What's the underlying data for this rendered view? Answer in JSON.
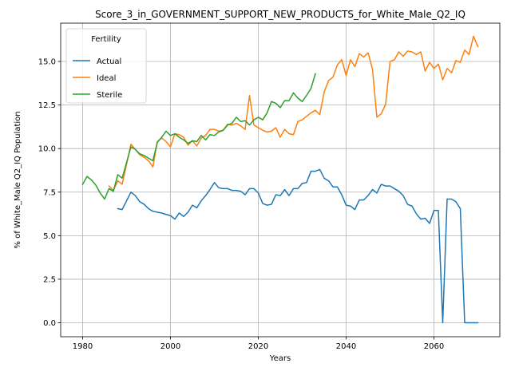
{
  "chart_data": {
    "type": "line",
    "title": "Score_3_in_GOVERNMENT_SUPPORT_NEW_PRODUCTS_for_White_Male_Q2_IQ",
    "xlabel": "Years",
    "ylabel": "% of White_Male Q2_IQ Population",
    "xlim": [
      1975,
      2075
    ],
    "ylim": [
      -0.8,
      17.2
    ],
    "xticks": [
      1980,
      2000,
      2020,
      2040,
      2060
    ],
    "xtick_labels": [
      "1980",
      "2000",
      "2020",
      "2040",
      "2060"
    ],
    "yticks": [
      0,
      2.5,
      5,
      7.5,
      10,
      12.5,
      15
    ],
    "ytick_labels": [
      "0.0",
      "2.5",
      "5.0",
      "7.5",
      "10.0",
      "12.5",
      "15.0"
    ],
    "grid": true,
    "legend": {
      "title": "Fertility",
      "placement": "upper-left"
    },
    "series": [
      {
        "name": "Actual",
        "color": "#1f77b4",
        "x": [
          1988,
          1989,
          1990,
          1991,
          1992,
          1993,
          1994,
          1995,
          1996,
          1997,
          1998,
          1999,
          2000,
          2001,
          2002,
          2003,
          2004,
          2005,
          2006,
          2007,
          2008,
          2009,
          2010,
          2011,
          2012,
          2013,
          2014,
          2015,
          2016,
          2017,
          2018,
          2019,
          2020,
          2021,
          2022,
          2023,
          2024,
          2025,
          2026,
          2027,
          2028,
          2029,
          2030,
          2031,
          2032,
          2033,
          2034,
          2035,
          2036,
          2037,
          2038,
          2039,
          2040,
          2041,
          2042,
          2043,
          2044,
          2045,
          2046,
          2047,
          2048,
          2049,
          2050,
          2051,
          2052,
          2053,
          2054,
          2055,
          2056,
          2057,
          2058,
          2059,
          2060,
          2061,
          2062,
          2063,
          2064,
          2065,
          2066,
          2067,
          2068,
          2069,
          2070
        ],
        "y": [
          6.55,
          6.5,
          7.0,
          7.5,
          7.3,
          6.95,
          6.8,
          6.55,
          6.4,
          6.35,
          6.3,
          6.22,
          6.15,
          5.95,
          6.3,
          6.1,
          6.35,
          6.75,
          6.6,
          7.0,
          7.3,
          7.65,
          8.05,
          7.75,
          7.7,
          7.7,
          7.6,
          7.6,
          7.55,
          7.35,
          7.7,
          7.7,
          7.45,
          6.85,
          6.75,
          6.8,
          7.35,
          7.3,
          7.65,
          7.3,
          7.7,
          7.7,
          8.0,
          8.05,
          8.7,
          8.7,
          8.8,
          8.3,
          8.15,
          7.8,
          7.8,
          7.35,
          6.75,
          6.7,
          6.5,
          7.05,
          7.05,
          7.3,
          7.65,
          7.45,
          7.95,
          7.85,
          7.85,
          7.7,
          7.55,
          7.3,
          6.8,
          6.7,
          6.25,
          5.95,
          6.0,
          5.7,
          6.45,
          6.45,
          0.0,
          7.1,
          7.1,
          6.95,
          6.55,
          0.0,
          0.0,
          0.0,
          0.0
        ]
      },
      {
        "name": "Ideal",
        "color": "#ff7f0e",
        "x": [
          1986,
          1987,
          1988,
          1989,
          1990,
          1991,
          1992,
          1993,
          1994,
          1995,
          1996,
          1997,
          1998,
          1999,
          2000,
          2001,
          2002,
          2003,
          2004,
          2005,
          2006,
          2007,
          2008,
          2009,
          2010,
          2011,
          2012,
          2013,
          2014,
          2015,
          2016,
          2017,
          2018,
          2019,
          2020,
          2021,
          2022,
          2023,
          2024,
          2025,
          2026,
          2027,
          2028,
          2029,
          2030,
          2031,
          2032,
          2033,
          2034,
          2035,
          2036,
          2037,
          2038,
          2039,
          2040,
          2041,
          2042,
          2043,
          2044,
          2045,
          2046,
          2047,
          2048,
          2049,
          2050,
          2051,
          2052,
          2053,
          2054,
          2055,
          2056,
          2057,
          2058,
          2059,
          2060,
          2061,
          2062,
          2063,
          2064,
          2065,
          2066,
          2067,
          2068,
          2069,
          2070
        ],
        "y": [
          7.85,
          7.6,
          8.15,
          7.95,
          9.1,
          10.25,
          9.95,
          9.65,
          9.5,
          9.3,
          8.95,
          10.4,
          10.6,
          10.4,
          10.1,
          10.85,
          10.8,
          10.65,
          10.2,
          10.45,
          10.15,
          10.6,
          10.75,
          11.1,
          11.1,
          11.0,
          11.05,
          11.4,
          11.35,
          11.45,
          11.3,
          11.1,
          13.05,
          11.35,
          11.2,
          11.05,
          10.95,
          11.0,
          11.2,
          10.65,
          11.1,
          10.85,
          10.8,
          11.55,
          11.65,
          11.85,
          12.05,
          12.2,
          11.95,
          13.25,
          13.9,
          14.1,
          14.8,
          15.1,
          14.2,
          15.1,
          14.7,
          15.45,
          15.25,
          15.5,
          14.55,
          11.8,
          12.0,
          12.55,
          15.0,
          15.1,
          15.55,
          15.3,
          15.6,
          15.55,
          15.4,
          15.55,
          14.45,
          14.95,
          14.6,
          14.85,
          13.95,
          14.6,
          14.35,
          15.05,
          14.95,
          15.65,
          15.4,
          16.45,
          15.85
        ]
      },
      {
        "name": "Sterile",
        "color": "#2ca02c",
        "x": [
          1980,
          1981,
          1982,
          1983,
          1984,
          1985,
          1986,
          1987,
          1988,
          1989,
          1990,
          1991,
          1992,
          1993,
          1994,
          1995,
          1996,
          1997,
          1998,
          1999,
          2000,
          2001,
          2002,
          2003,
          2004,
          2005,
          2006,
          2007,
          2008,
          2009,
          2010,
          2011,
          2012,
          2013,
          2014,
          2015,
          2016,
          2017,
          2018,
          2019,
          2020,
          2021,
          2022,
          2023,
          2024,
          2025,
          2026,
          2027,
          2028,
          2029,
          2030,
          2031,
          2032,
          2033
        ],
        "y": [
          7.95,
          8.4,
          8.2,
          7.9,
          7.45,
          7.1,
          7.7,
          7.55,
          8.5,
          8.3,
          9.2,
          10.1,
          9.95,
          9.7,
          9.6,
          9.45,
          9.3,
          10.35,
          10.65,
          11.0,
          10.75,
          10.85,
          10.65,
          10.5,
          10.3,
          10.45,
          10.4,
          10.75,
          10.5,
          10.8,
          10.75,
          10.95,
          11.05,
          11.35,
          11.45,
          11.8,
          11.55,
          11.6,
          11.35,
          11.65,
          11.8,
          11.65,
          12.05,
          12.7,
          12.6,
          12.35,
          12.75,
          12.75,
          13.2,
          12.9,
          12.7,
          13.05,
          13.45,
          14.3
        ]
      }
    ]
  }
}
